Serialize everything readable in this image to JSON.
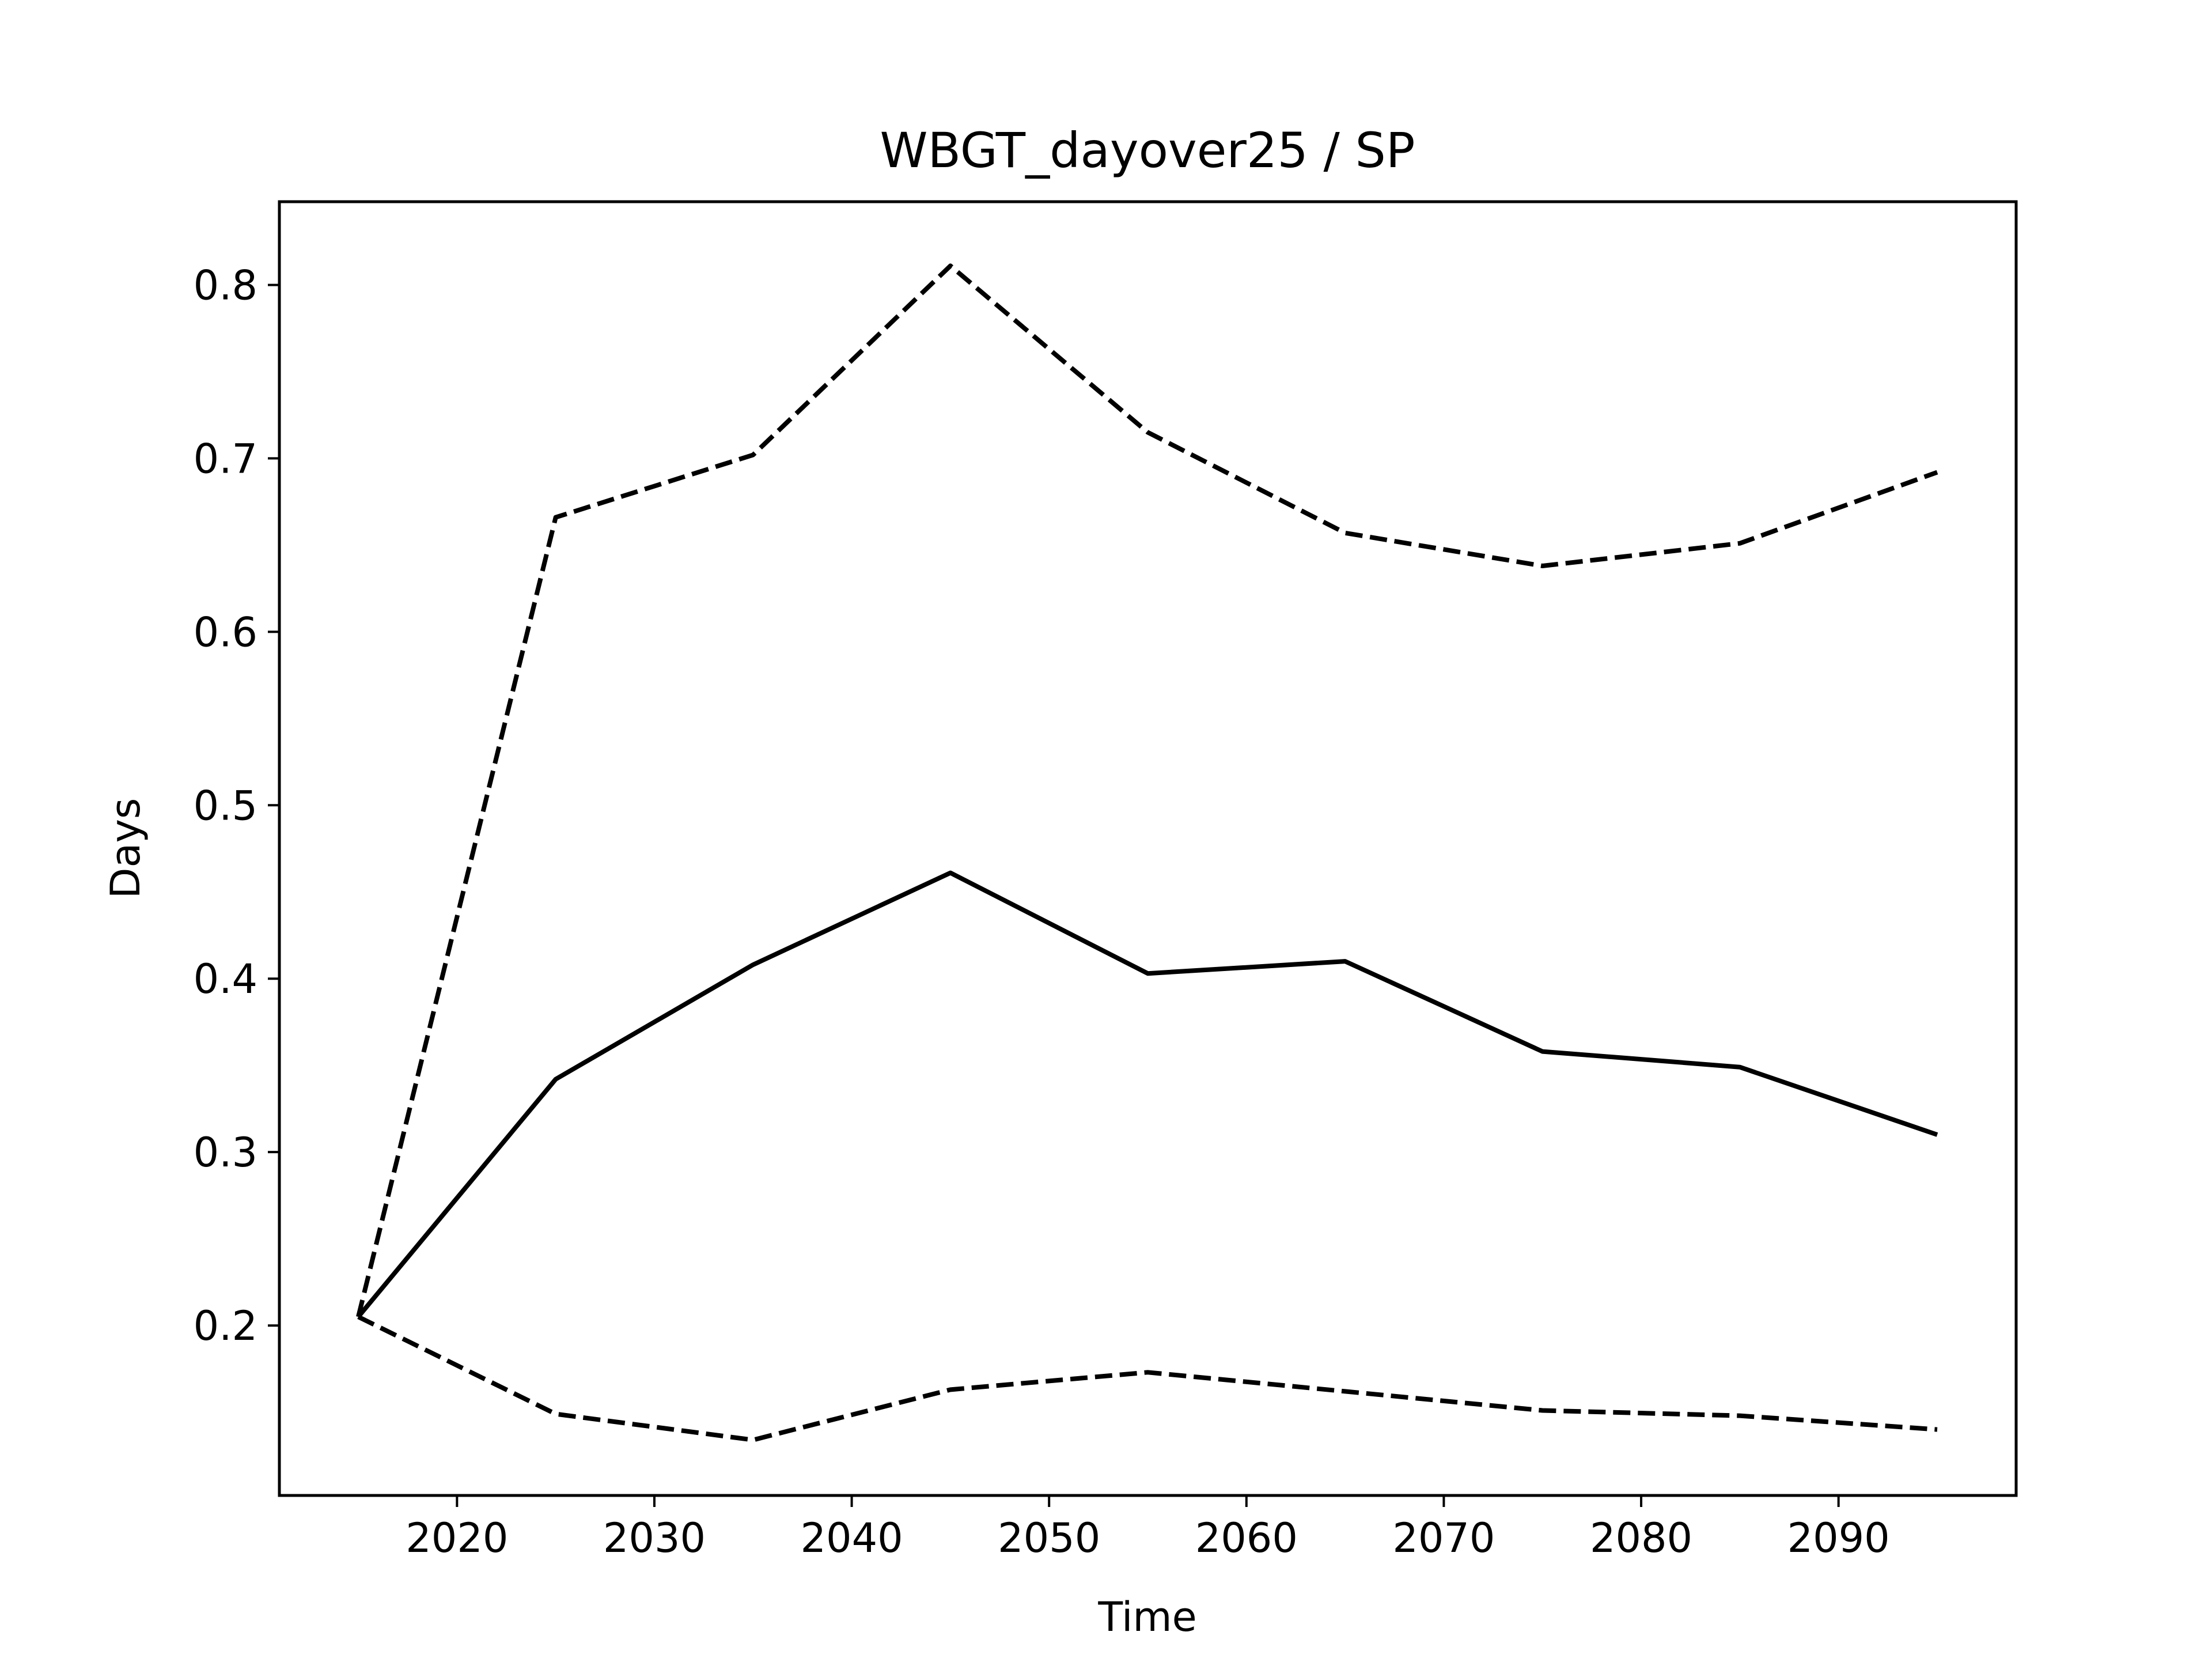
{
  "chart_data": {
    "type": "line",
    "title": "WBGT_dayover25 / SP",
    "xlabel": "Time",
    "ylabel": "Days",
    "x": [
      2015,
      2025,
      2035,
      2045,
      2055,
      2065,
      2075,
      2085,
      2095
    ],
    "series": [
      {
        "style": "solid",
        "color": "#000000",
        "values": [
          0.205,
          0.342,
          0.408,
          0.461,
          0.403,
          0.41,
          0.358,
          0.349,
          0.31
        ]
      },
      {
        "style": "dashed",
        "color": "#000000",
        "values": [
          0.205,
          0.666,
          0.702,
          0.811,
          0.715,
          0.657,
          0.638,
          0.651,
          0.692
        ]
      },
      {
        "style": "dashed",
        "color": "#000000",
        "values": [
          0.205,
          0.149,
          0.134,
          0.163,
          0.173,
          0.162,
          0.151,
          0.148,
          0.14
        ]
      }
    ],
    "xticks": [
      "2020",
      "2030",
      "2040",
      "2050",
      "2060",
      "2070",
      "2080",
      "2090"
    ],
    "yticks": [
      "0.2",
      "0.3",
      "0.4",
      "0.5",
      "0.6",
      "0.7",
      "0.8"
    ],
    "xlim": [
      2011,
      2099
    ],
    "ylim": [
      0.102,
      0.848
    ],
    "grid": false,
    "legend": "none"
  }
}
